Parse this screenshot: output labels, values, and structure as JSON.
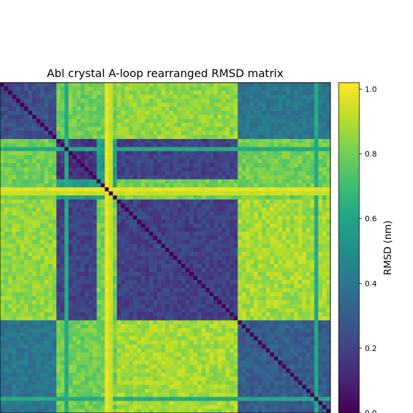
{
  "chart_data": {
    "type": "heatmap",
    "title": "Abl crystal A-loop rearranged RMSD matrix",
    "xlabel": "",
    "ylabel": "",
    "colorbar": {
      "label": "RMSD (nm)",
      "colormap": "viridis",
      "range": [
        0.0,
        1.02
      ],
      "ticks": [
        "0.0",
        "0.2",
        "0.4",
        "0.6",
        "0.8",
        "1.0"
      ]
    },
    "n": 82,
    "clusters": [
      {
        "start": 0,
        "end": 13,
        "intra_rmsd": 0.25,
        "color": "#3b528b"
      },
      {
        "start": 14,
        "end": 23,
        "intra_rmsd": 0.15,
        "color": "#433e85"
      },
      {
        "start": 24,
        "end": 28,
        "intra_rmsd": 0.6,
        "color": "#21918c"
      },
      {
        "start": 29,
        "end": 58,
        "intra_rmsd": 0.2,
        "color": "#453781"
      },
      {
        "start": 59,
        "end": 81,
        "intra_rmsd": 0.3,
        "color": "#3b528b"
      }
    ],
    "between_cluster_rmsd": [
      [
        0.25,
        0.8,
        0.8,
        0.85,
        0.4
      ],
      [
        0.8,
        0.15,
        0.55,
        0.2,
        0.8
      ],
      [
        0.8,
        0.55,
        0.6,
        0.8,
        0.8
      ],
      [
        0.85,
        0.2,
        0.8,
        0.2,
        0.88
      ],
      [
        0.4,
        0.8,
        0.8,
        0.88,
        0.3
      ]
    ],
    "outlier_rows": [
      {
        "index": 16,
        "rmsd_to_others": 0.62
      },
      {
        "index": 26,
        "rmsd_to_others": 0.98
      },
      {
        "index": 27,
        "rmsd_to_others": 0.93
      },
      {
        "index": 78,
        "rmsd_to_others": 0.62
      }
    ],
    "diagonal_rmsd": 0.0
  }
}
